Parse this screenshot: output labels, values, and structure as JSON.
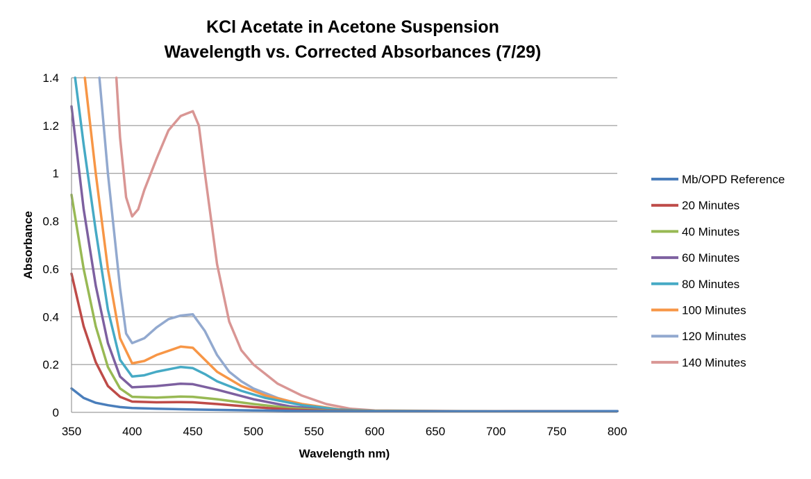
{
  "chart_data": {
    "type": "line",
    "title": [
      "KCl Acetate in Acetone Suspension",
      "Wavelength vs. Corrected Absorbances (7/29)"
    ],
    "xlabel": "Wavelength nm)",
    "ylabel": "Absorbance",
    "xlim": [
      350,
      800
    ],
    "ylim": [
      0,
      1.4
    ],
    "x_ticks": [
      "350",
      "400",
      "450",
      "500",
      "550",
      "600",
      "650",
      "700",
      "750",
      "800"
    ],
    "y_ticks": [
      "0",
      "0.2",
      "0.4",
      "0.6",
      "0.8",
      "1",
      "1.2",
      "1.4"
    ],
    "grid": "horizontal",
    "legend": "right",
    "series": [
      {
        "name": "Mb/OPD Reference",
        "color": "#4a7ebb",
        "x": [
          350,
          360,
          370,
          380,
          390,
          400,
          420,
          450,
          500,
          550,
          600,
          700,
          800
        ],
        "y": [
          0.1,
          0.06,
          0.04,
          0.03,
          0.022,
          0.018,
          0.015,
          0.012,
          0.008,
          0.005,
          0.004,
          0.004,
          0.005
        ]
      },
      {
        "name": "20 Minutes",
        "color": "#be4b48",
        "x": [
          350,
          360,
          370,
          380,
          390,
          400,
          420,
          440,
          450,
          470,
          500,
          530,
          560,
          600,
          700,
          800
        ],
        "y": [
          0.58,
          0.36,
          0.21,
          0.11,
          0.065,
          0.045,
          0.042,
          0.043,
          0.042,
          0.035,
          0.022,
          0.012,
          0.006,
          0.004,
          0.004,
          0.005
        ]
      },
      {
        "name": "40 Minutes",
        "color": "#98b954",
        "x": [
          350,
          360,
          370,
          380,
          390,
          400,
          420,
          440,
          450,
          470,
          500,
          530,
          560,
          600,
          700,
          800
        ],
        "y": [
          0.91,
          0.6,
          0.36,
          0.19,
          0.1,
          0.065,
          0.062,
          0.066,
          0.065,
          0.055,
          0.035,
          0.018,
          0.008,
          0.005,
          0.004,
          0.005
        ]
      },
      {
        "name": "60 Minutes",
        "color": "#7d60a0",
        "x": [
          350,
          360,
          370,
          380,
          390,
          400,
          420,
          440,
          450,
          470,
          500,
          530,
          560,
          600,
          700,
          800
        ],
        "y": [
          1.28,
          0.85,
          0.53,
          0.29,
          0.15,
          0.105,
          0.11,
          0.12,
          0.118,
          0.095,
          0.055,
          0.025,
          0.01,
          0.005,
          0.004,
          0.005
        ]
      },
      {
        "name": "80 Minutes",
        "color": "#46aac5",
        "x": [
          353,
          360,
          370,
          380,
          390,
          400,
          410,
          420,
          440,
          450,
          460,
          470,
          490,
          510,
          540,
          570,
          600,
          700,
          800
        ],
        "y": [
          1.4,
          1.12,
          0.76,
          0.43,
          0.22,
          0.15,
          0.155,
          0.17,
          0.19,
          0.185,
          0.16,
          0.13,
          0.09,
          0.06,
          0.03,
          0.012,
          0.006,
          0.004,
          0.005
        ]
      },
      {
        "name": "100 Minutes",
        "color": "#f79646",
        "x": [
          361,
          370,
          380,
          390,
          400,
          410,
          420,
          440,
          450,
          460,
          470,
          490,
          510,
          540,
          570,
          600,
          700,
          800
        ],
        "y": [
          1.4,
          1.0,
          0.6,
          0.31,
          0.205,
          0.215,
          0.24,
          0.275,
          0.27,
          0.22,
          0.17,
          0.11,
          0.07,
          0.035,
          0.013,
          0.006,
          0.004,
          0.005
        ]
      },
      {
        "name": "120 Minutes",
        "color": "#92a9cf",
        "x": [
          373,
          380,
          390,
          395,
          400,
          410,
          420,
          430,
          440,
          450,
          460,
          470,
          480,
          490,
          500,
          520,
          540,
          570,
          600,
          700,
          800
        ],
        "y": [
          1.4,
          1.0,
          0.52,
          0.33,
          0.29,
          0.31,
          0.355,
          0.39,
          0.405,
          0.41,
          0.34,
          0.24,
          0.17,
          0.13,
          0.1,
          0.06,
          0.032,
          0.012,
          0.006,
          0.004,
          0.005
        ]
      },
      {
        "name": "140 Minutes",
        "color": "#d99694",
        "x": [
          387,
          390,
          395,
          400,
          405,
          410,
          420,
          430,
          440,
          445,
          450,
          455,
          460,
          470,
          480,
          490,
          500,
          520,
          540,
          560,
          580,
          600,
          700,
          800
        ],
        "y": [
          1.4,
          1.15,
          0.9,
          0.82,
          0.85,
          0.93,
          1.06,
          1.18,
          1.24,
          1.25,
          1.26,
          1.2,
          1.0,
          0.62,
          0.38,
          0.26,
          0.2,
          0.12,
          0.07,
          0.035,
          0.015,
          0.008,
          0.004,
          0.005
        ]
      }
    ]
  }
}
